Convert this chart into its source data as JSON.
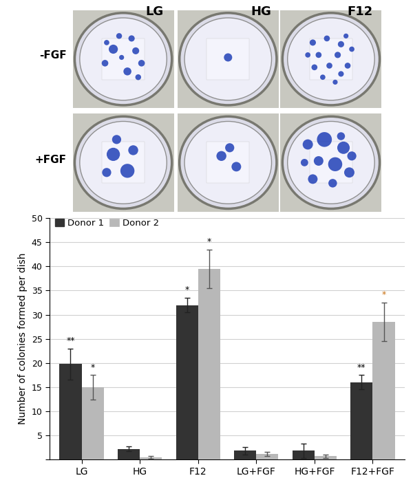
{
  "categories": [
    "LG",
    "HG",
    "F12",
    "LG+FGF",
    "HG+FGF",
    "F12+FGF"
  ],
  "donor1_values": [
    19.8,
    2.2,
    32.0,
    1.85,
    1.85,
    16.0
  ],
  "donor2_values": [
    15.0,
    0.5,
    39.5,
    1.2,
    0.7,
    28.5
  ],
  "donor1_errors": [
    3.2,
    0.5,
    1.5,
    0.8,
    1.5,
    1.5
  ],
  "donor2_errors": [
    2.5,
    0.3,
    4.0,
    0.4,
    0.3,
    4.0
  ],
  "donor1_color": "#333333",
  "donor2_color": "#b8b8b8",
  "ylabel": "Number of colonies formed per dish",
  "ylim": [
    0,
    50
  ],
  "yticks": [
    0,
    5,
    10,
    15,
    20,
    25,
    30,
    35,
    40,
    45,
    50
  ],
  "legend_donor1": "Donor 1",
  "legend_donor2": "Donor 2",
  "bar_width": 0.38,
  "col_labels": [
    "LG",
    "HG",
    "F12"
  ],
  "row_labels": [
    "-FGF",
    "+FGF"
  ],
  "annotations_donor1": [
    "**",
    "",
    "*",
    "",
    "",
    "**"
  ],
  "annotations_donor2": [
    "*",
    "",
    "*",
    "",
    "",
    "*"
  ],
  "ann1_colors": [
    "#000000",
    "",
    "#000000",
    "",
    "",
    "#000000"
  ],
  "ann2_colors": [
    "#000000",
    "",
    "#000000",
    "",
    "",
    "#c87010"
  ],
  "img_bg": "#f0f0f0",
  "dish_bg": "#e8eaf5",
  "dish_rim": "#aaaaaa",
  "dot_color": "#1a3ab5",
  "dish_colonies": [
    [
      [
        0.38,
        0.62,
        0.055
      ],
      [
        0.55,
        0.35,
        0.048
      ],
      [
        0.65,
        0.6,
        0.042
      ],
      [
        0.28,
        0.45,
        0.04
      ],
      [
        0.6,
        0.75,
        0.038
      ],
      [
        0.45,
        0.78,
        0.035
      ],
      [
        0.72,
        0.45,
        0.04
      ],
      [
        0.3,
        0.7,
        0.032
      ],
      [
        0.68,
        0.28,
        0.035
      ],
      [
        0.48,
        0.52,
        0.03
      ]
    ],
    [
      [
        0.5,
        0.52,
        0.05
      ]
    ],
    [
      [
        0.28,
        0.7,
        0.038
      ],
      [
        0.45,
        0.75,
        0.036
      ],
      [
        0.62,
        0.68,
        0.038
      ],
      [
        0.35,
        0.55,
        0.036
      ],
      [
        0.58,
        0.55,
        0.038
      ],
      [
        0.7,
        0.42,
        0.036
      ],
      [
        0.3,
        0.4,
        0.036
      ],
      [
        0.48,
        0.42,
        0.036
      ],
      [
        0.62,
        0.32,
        0.034
      ],
      [
        0.22,
        0.55,
        0.032
      ],
      [
        0.75,
        0.62,
        0.032
      ],
      [
        0.4,
        0.28,
        0.032
      ],
      [
        0.55,
        0.22,
        0.03
      ],
      [
        0.68,
        0.78,
        0.03
      ]
    ],
    [
      [
        0.38,
        0.6,
        0.08
      ],
      [
        0.55,
        0.4,
        0.085
      ],
      [
        0.62,
        0.65,
        0.06
      ],
      [
        0.42,
        0.78,
        0.055
      ],
      [
        0.3,
        0.38,
        0.055
      ]
    ],
    [
      [
        0.42,
        0.58,
        0.06
      ],
      [
        0.6,
        0.45,
        0.058
      ],
      [
        0.52,
        0.68,
        0.055
      ]
    ],
    [
      [
        0.22,
        0.72,
        0.062
      ],
      [
        0.42,
        0.78,
        0.09
      ],
      [
        0.65,
        0.68,
        0.075
      ],
      [
        0.35,
        0.52,
        0.058
      ],
      [
        0.55,
        0.48,
        0.085
      ],
      [
        0.72,
        0.38,
        0.062
      ],
      [
        0.28,
        0.3,
        0.058
      ],
      [
        0.52,
        0.25,
        0.052
      ],
      [
        0.75,
        0.58,
        0.055
      ],
      [
        0.18,
        0.5,
        0.045
      ],
      [
        0.62,
        0.82,
        0.048
      ]
    ]
  ]
}
